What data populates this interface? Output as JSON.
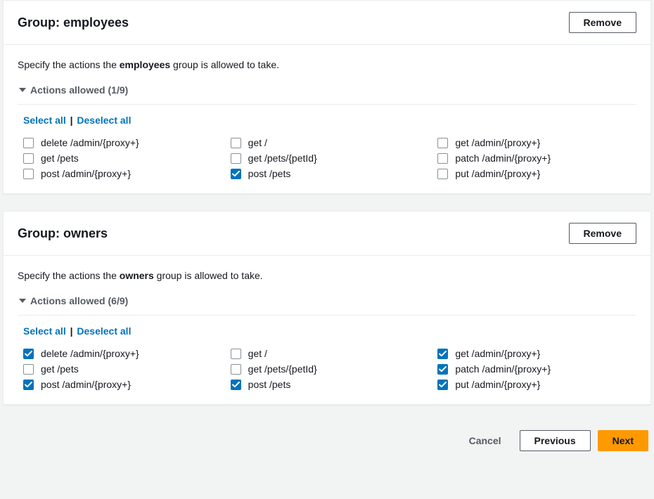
{
  "colors": {
    "page_bg": "#f2f3f3",
    "panel_bg": "#ffffff",
    "panel_border": "#eaeded",
    "text": "#16191f",
    "muted": "#545b64",
    "link": "#0073bb",
    "checkbox_border": "#879196",
    "checkbox_checked": "#0073bb",
    "primary_button_bg": "#ff9900"
  },
  "ui_labels": {
    "remove": "Remove",
    "select_all": "Select all",
    "deselect_all": "Deselect all",
    "cancel": "Cancel",
    "previous": "Previous",
    "next": "Next",
    "group_prefix": "Group: ",
    "specify_prefix": "Specify the actions the ",
    "specify_suffix": " group is allowed to take.",
    "actions_allowed": "Actions allowed"
  },
  "groups": [
    {
      "name": "employees",
      "selected_count": 1,
      "total_count": 9,
      "actions": [
        {
          "label": "delete /admin/{proxy+}",
          "checked": false
        },
        {
          "label": "get /",
          "checked": false
        },
        {
          "label": "get /admin/{proxy+}",
          "checked": false
        },
        {
          "label": "get /pets",
          "checked": false
        },
        {
          "label": "get /pets/{petId}",
          "checked": false
        },
        {
          "label": "patch /admin/{proxy+}",
          "checked": false
        },
        {
          "label": "post /admin/{proxy+}",
          "checked": false
        },
        {
          "label": "post /pets",
          "checked": true
        },
        {
          "label": "put /admin/{proxy+}",
          "checked": false
        }
      ]
    },
    {
      "name": "owners",
      "selected_count": 6,
      "total_count": 9,
      "actions": [
        {
          "label": "delete /admin/{proxy+}",
          "checked": true
        },
        {
          "label": "get /",
          "checked": false
        },
        {
          "label": "get /admin/{proxy+}",
          "checked": true
        },
        {
          "label": "get /pets",
          "checked": false
        },
        {
          "label": "get /pets/{petId}",
          "checked": false
        },
        {
          "label": "patch /admin/{proxy+}",
          "checked": true
        },
        {
          "label": "post /admin/{proxy+}",
          "checked": true
        },
        {
          "label": "post /pets",
          "checked": true
        },
        {
          "label": "put /admin/{proxy+}",
          "checked": true
        }
      ]
    }
  ]
}
